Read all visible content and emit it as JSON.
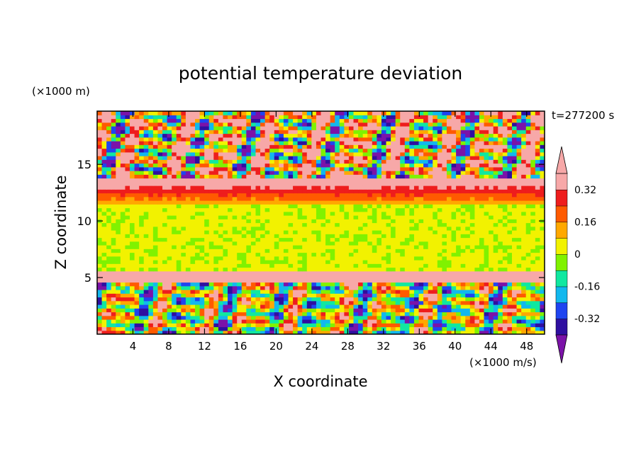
{
  "chart_data": {
    "type": "heatmap",
    "title": "potential temperature deviation",
    "xlabel": "X coordinate",
    "ylabel": "Z coordinate",
    "x_unit": "(×1000 m/s)",
    "y_unit": "(×1000 m)",
    "time_label": "t=277200 s",
    "xlim": [
      0,
      50
    ],
    "ylim": [
      0,
      19.7
    ],
    "x_ticks": [
      4,
      8,
      12,
      16,
      20,
      24,
      28,
      32,
      36,
      40,
      44,
      48
    ],
    "y_ticks": [
      5,
      10,
      15
    ],
    "colorbar": {
      "levels": [
        -0.4,
        -0.32,
        -0.24,
        -0.16,
        -0.08,
        0,
        0.08,
        0.16,
        0.24,
        0.32,
        0.4
      ],
      "labels": [
        "0.32",
        "0.16",
        "0",
        "-0.16",
        "-0.32"
      ],
      "label_values": [
        0.32,
        0.16,
        0,
        -0.16,
        -0.32
      ],
      "colors": [
        "#7b12a8",
        "#2f0fa0",
        "#1f44f0",
        "#12b8ee",
        "#10e8a0",
        "#80f200",
        "#f2f200",
        "#ffa800",
        "#ff5a00",
        "#ee1d1d",
        "#f7a8a8"
      ],
      "extend": "both"
    },
    "vertical_bands": [
      {
        "z_range": [
          0,
          4.5
        ],
        "field": "turbulent",
        "mean_level": 0.0,
        "amplitude": 0.35
      },
      {
        "z_range": [
          4.5,
          5.6
        ],
        "field": "layer",
        "mean_level": 0.42
      },
      {
        "z_range": [
          5.6,
          11.6
        ],
        "field": "uniform",
        "mean_level": 0.02
      },
      {
        "z_range": [
          11.6,
          13.8
        ],
        "field": "gradient",
        "mean_level": 0.3
      },
      {
        "z_range": [
          13.8,
          19.7
        ],
        "field": "turbulent",
        "mean_level": 0.1,
        "amplitude": 0.5
      }
    ]
  }
}
